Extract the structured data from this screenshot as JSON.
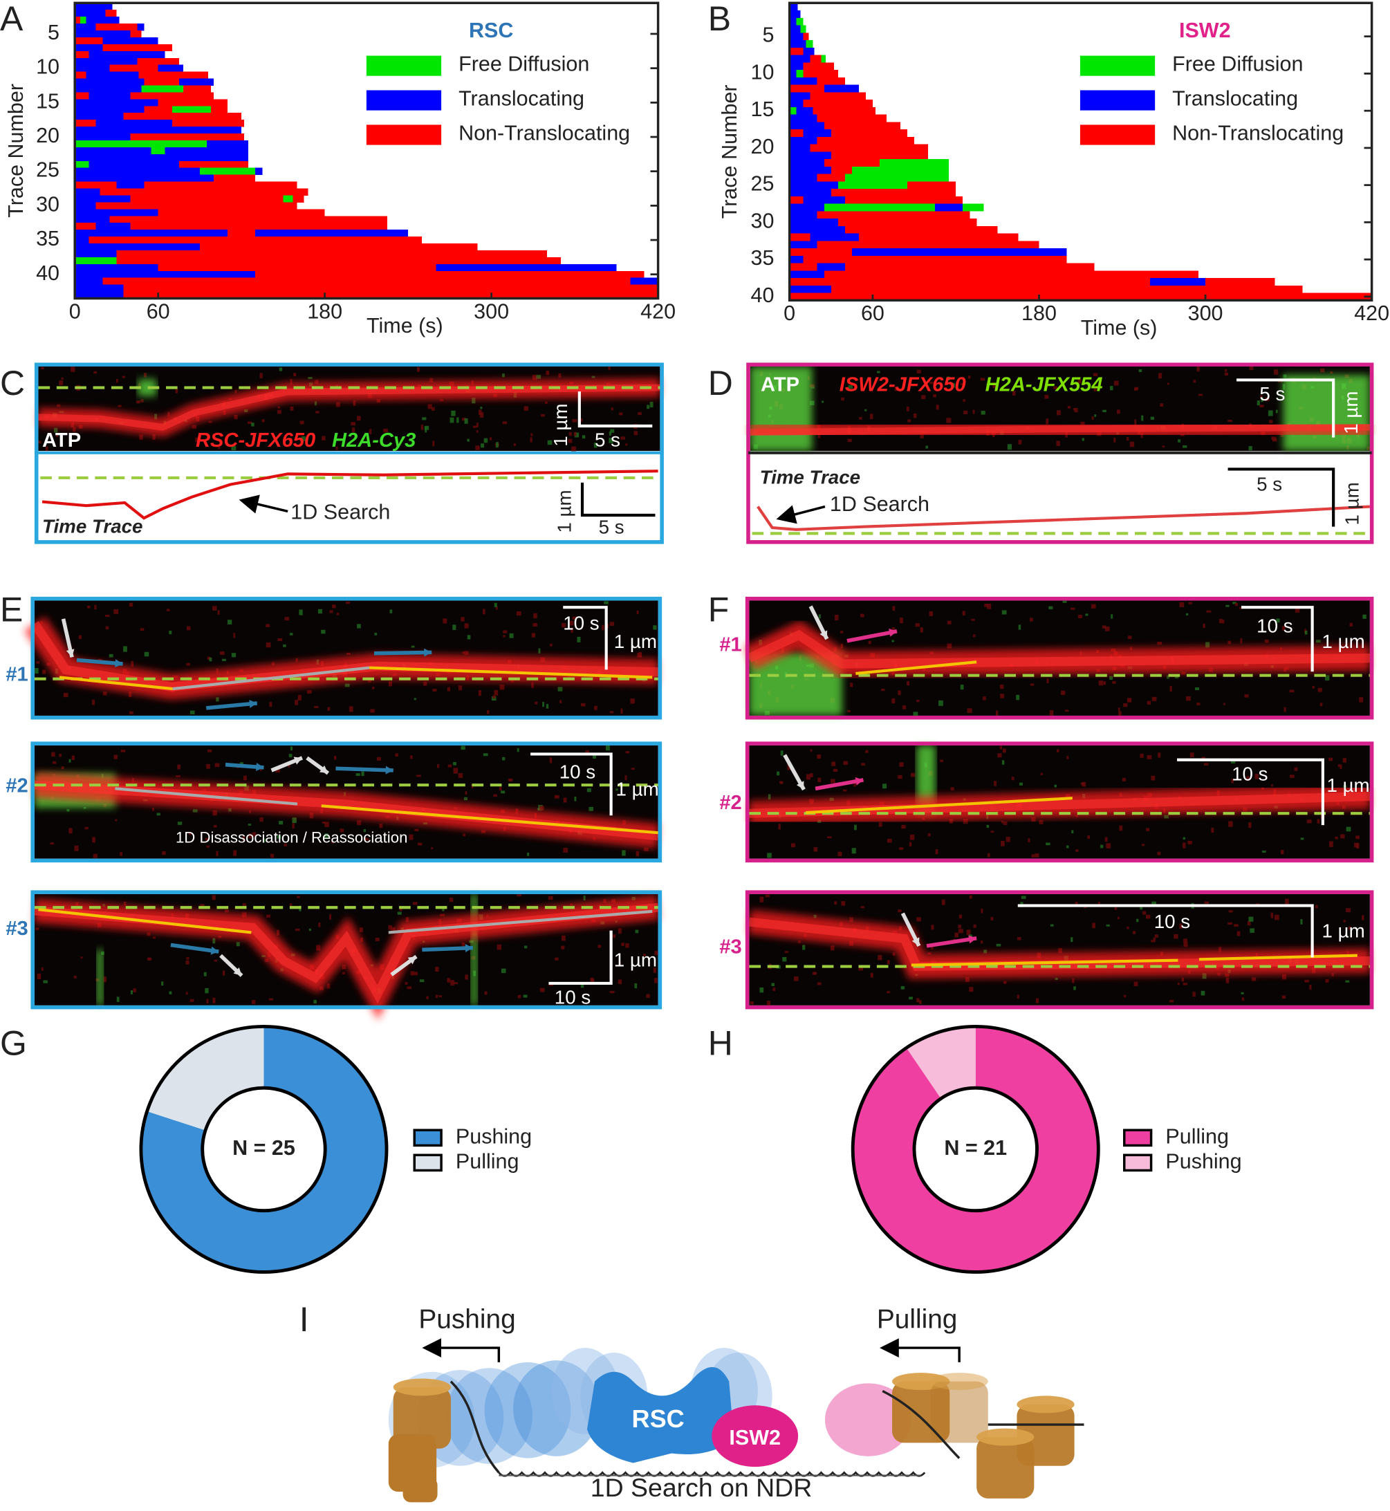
{
  "chart_data": [
    {
      "type": "gantt",
      "title": "RSC",
      "title_color": "#2e75b6",
      "xlabel": "Time (s)",
      "ylabel": "Trace Number",
      "xlim": [
        0,
        420
      ],
      "xticks": [
        0,
        60,
        180,
        300,
        420
      ],
      "ylim": [
        0.5,
        43.5
      ],
      "yticks": [
        5,
        10,
        15,
        20,
        25,
        30,
        35,
        40
      ],
      "legend": "upper right",
      "series": [
        {
          "name": "Free Diffusion",
          "color": "#00e600"
        },
        {
          "name": "Translocating",
          "color": "#0000ff"
        },
        {
          "name": "Non-Translocating",
          "color": "#ff0000"
        }
      ],
      "traces": [
        [
          [
            "Translocating",
            27
          ]
        ],
        [
          [
            "Translocating",
            22
          ],
          [
            "Non-Translocating",
            8
          ]
        ],
        [
          [
            "Non-Translocating",
            4
          ],
          [
            "Free Diffusion",
            4
          ],
          [
            "Translocating",
            24
          ]
        ],
        [
          [
            "Translocating",
            15
          ],
          [
            "Non-Translocating",
            30
          ],
          [
            "Translocating",
            5
          ]
        ],
        [
          [
            "Translocating",
            40
          ],
          [
            "Non-Translocating",
            8
          ]
        ],
        [
          [
            "Non-Translocating",
            20
          ],
          [
            "Translocating",
            40
          ]
        ],
        [
          [
            "Translocating",
            20
          ],
          [
            "Non-Translocating",
            50
          ]
        ],
        [
          [
            "Non-Translocating",
            10
          ],
          [
            "Translocating",
            55
          ]
        ],
        [
          [
            "Translocating",
            45
          ],
          [
            "Non-Translocating",
            30
          ]
        ],
        [
          [
            "Translocating",
            25
          ],
          [
            "Non-Translocating",
            35
          ],
          [
            "Translocating",
            18
          ]
        ],
        [
          [
            "Non-Translocating",
            8
          ],
          [
            "Translocating",
            38
          ],
          [
            "Non-Translocating",
            50
          ]
        ],
        [
          [
            "Translocating",
            50
          ],
          [
            "Non-Translocating",
            25
          ],
          [
            "Translocating",
            25
          ]
        ],
        [
          [
            "Translocating",
            48
          ],
          [
            "Free Diffusion",
            30
          ],
          [
            "Non-Translocating",
            20
          ]
        ],
        [
          [
            "Non-Translocating",
            10
          ],
          [
            "Translocating",
            30
          ],
          [
            "Non-Translocating",
            60
          ]
        ],
        [
          [
            "Translocating",
            60
          ],
          [
            "Non-Translocating",
            50
          ]
        ],
        [
          [
            "Translocating",
            50
          ],
          [
            "Non-Translocating",
            20
          ],
          [
            "Free Diffusion",
            28
          ],
          [
            "Non-Translocating",
            12
          ]
        ],
        [
          [
            "Translocating",
            35
          ],
          [
            "Non-Translocating",
            85
          ]
        ],
        [
          [
            "Non-Translocating",
            15
          ],
          [
            "Translocating",
            55
          ],
          [
            "Non-Translocating",
            52
          ]
        ],
        [
          [
            "Translocating",
            120
          ]
        ],
        [
          [
            "Translocating",
            40
          ],
          [
            "Non-Translocating",
            82
          ]
        ],
        [
          [
            "Free Diffusion",
            95
          ],
          [
            "Translocating",
            30
          ]
        ],
        [
          [
            "Translocating",
            55
          ],
          [
            "Free Diffusion",
            10
          ],
          [
            "Translocating",
            60
          ]
        ],
        [
          [
            "Translocating",
            125
          ]
        ],
        [
          [
            "Free Diffusion",
            10
          ],
          [
            "Translocating",
            65
          ],
          [
            "Non-Translocating",
            50
          ]
        ],
        [
          [
            "Translocating",
            90
          ],
          [
            "Free Diffusion",
            40
          ],
          [
            "Translocating",
            5
          ]
        ],
        [
          [
            "Translocating",
            100
          ],
          [
            "Non-Translocating",
            30
          ]
        ],
        [
          [
            "Non-Translocating",
            30
          ],
          [
            "Translocating",
            20
          ],
          [
            "Non-Translocating",
            110
          ]
        ],
        [
          [
            "Translocating",
            18
          ],
          [
            "Non-Translocating",
            150
          ]
        ],
        [
          [
            "Translocating",
            40
          ],
          [
            "Non-Translocating",
            110
          ],
          [
            "Free Diffusion",
            7
          ],
          [
            "Non-Translocating",
            8
          ]
        ],
        [
          [
            "Translocating",
            15
          ],
          [
            "Non-Translocating",
            145
          ]
        ],
        [
          [
            "Translocating",
            60
          ],
          [
            "Non-Translocating",
            120
          ]
        ],
        [
          [
            "Translocating",
            25
          ],
          [
            "Non-Translocating",
            200
          ]
        ],
        [
          [
            "Non-Translocating",
            15
          ],
          [
            "Translocating",
            25
          ],
          [
            "Non-Translocating",
            185
          ]
        ],
        [
          [
            "Translocating",
            110
          ],
          [
            "Non-Translocating",
            20
          ],
          [
            "Translocating",
            110
          ]
        ],
        [
          [
            "Translocating",
            10
          ],
          [
            "Non-Translocating",
            240
          ]
        ],
        [
          [
            "Translocating",
            90
          ],
          [
            "Non-Translocating",
            200
          ]
        ],
        [
          [
            "Translocating",
            30
          ],
          [
            "Non-Translocating",
            310
          ]
        ],
        [
          [
            "Free Diffusion",
            30
          ],
          [
            "Non-Translocating",
            320
          ]
        ],
        [
          [
            "Translocating",
            60
          ],
          [
            "Non-Translocating",
            200
          ],
          [
            "Translocating",
            130
          ]
        ],
        [
          [
            "Translocating",
            130
          ],
          [
            "Non-Translocating",
            280
          ]
        ],
        [
          [
            "Translocating",
            20
          ],
          [
            "Non-Translocating",
            380
          ],
          [
            "Translocating",
            20
          ]
        ],
        [
          [
            "Translocating",
            35
          ],
          [
            "Non-Translocating",
            385
          ]
        ],
        [
          [
            "Translocating",
            35
          ],
          [
            "Non-Translocating",
            385
          ]
        ]
      ]
    },
    {
      "type": "gantt",
      "title": "ISW2",
      "title_color": "#e0218a",
      "xlabel": "Time (s)",
      "ylabel": "Trace Number",
      "xlim": [
        0,
        420
      ],
      "xticks": [
        0,
        60,
        180,
        300,
        420
      ],
      "ylim": [
        0.5,
        40.5
      ],
      "yticks": [
        5,
        10,
        15,
        20,
        25,
        30,
        35,
        40
      ],
      "legend": "upper right",
      "series": [
        {
          "name": "Free Diffusion",
          "color": "#00e600"
        },
        {
          "name": "Translocating",
          "color": "#0000ff"
        },
        {
          "name": "Non-Translocating",
          "color": "#ff0000"
        }
      ],
      "traces": [
        [
          [
            "Translocating",
            6
          ]
        ],
        [
          [
            "Translocating",
            8
          ]
        ],
        [
          [
            "Translocating",
            5
          ],
          [
            "Free Diffusion",
            5
          ]
        ],
        [
          [
            "Translocating",
            8
          ],
          [
            "Free Diffusion",
            4
          ]
        ],
        [
          [
            "Translocating",
            10
          ],
          [
            "Non-Translocating",
            4
          ]
        ],
        [
          [
            "Translocating",
            12
          ],
          [
            "Free Diffusion",
            5
          ]
        ],
        [
          [
            "Non-Translocating",
            10
          ],
          [
            "Translocating",
            8
          ]
        ],
        [
          [
            "Translocating",
            15
          ],
          [
            "Non-Translocating",
            8
          ],
          [
            "Free Diffusion",
            3
          ]
        ],
        [
          [
            "Translocating",
            10
          ],
          [
            "Non-Translocating",
            22
          ]
        ],
        [
          [
            "Translocating",
            5
          ],
          [
            "Free Diffusion",
            5
          ],
          [
            "Non-Translocating",
            25
          ]
        ],
        [
          [
            "Translocating",
            20
          ],
          [
            "Non-Translocating",
            20
          ]
        ],
        [
          [
            "Non-Translocating",
            25
          ],
          [
            "Translocating",
            25
          ]
        ],
        [
          [
            "Translocating",
            15
          ],
          [
            "Non-Translocating",
            40
          ]
        ],
        [
          [
            "Translocating",
            10
          ],
          [
            "Non-Translocating",
            50
          ]
        ],
        [
          [
            "Free Diffusion",
            5
          ],
          [
            "Translocating",
            12
          ],
          [
            "Non-Translocating",
            45
          ]
        ],
        [
          [
            "Translocating",
            20
          ],
          [
            "Non-Translocating",
            50
          ]
        ],
        [
          [
            "Translocating",
            25
          ],
          [
            "Non-Translocating",
            55
          ]
        ],
        [
          [
            "Non-Translocating",
            10
          ],
          [
            "Translocating",
            20
          ],
          [
            "Non-Translocating",
            55
          ]
        ],
        [
          [
            "Translocating",
            20
          ],
          [
            "Non-Translocating",
            70
          ]
        ],
        [
          [
            "Translocating",
            15
          ],
          [
            "Non-Translocating",
            85
          ]
        ],
        [
          [
            "Translocating",
            30
          ],
          [
            "Non-Translocating",
            70
          ]
        ],
        [
          [
            "Translocating",
            25
          ],
          [
            "Non-Translocating",
            40
          ],
          [
            "Free Diffusion",
            50
          ]
        ],
        [
          [
            "Translocating",
            30
          ],
          [
            "Non-Translocating",
            15
          ],
          [
            "Free Diffusion",
            70
          ]
        ],
        [
          [
            "Translocating",
            20
          ],
          [
            "Non-Translocating",
            20
          ],
          [
            "Free Diffusion",
            75
          ]
        ],
        [
          [
            "Translocating",
            35
          ],
          [
            "Free Diffusion",
            50
          ],
          [
            "Non-Translocating",
            35
          ]
        ],
        [
          [
            "Translocating",
            30
          ],
          [
            "Non-Translocating",
            90
          ]
        ],
        [
          [
            "Non-Translocating",
            10
          ],
          [
            "Translocating",
            30
          ],
          [
            "Non-Translocating",
            85
          ]
        ],
        [
          [
            "Translocating",
            25
          ],
          [
            "Free Diffusion",
            80
          ],
          [
            "Translocating",
            20
          ],
          [
            "Free Diffusion",
            15
          ]
        ],
        [
          [
            "Translocating",
            20
          ],
          [
            "Non-Translocating",
            110
          ]
        ],
        [
          [
            "Translocating",
            35
          ],
          [
            "Non-Translocating",
            100
          ]
        ],
        [
          [
            "Translocating",
            40
          ],
          [
            "Non-Translocating",
            110
          ]
        ],
        [
          [
            "Non-Translocating",
            15
          ],
          [
            "Translocating",
            35
          ],
          [
            "Non-Translocating",
            115
          ]
        ],
        [
          [
            "Translocating",
            20
          ],
          [
            "Non-Translocating",
            160
          ]
        ],
        [
          [
            "Non-Translocating",
            45
          ],
          [
            "Translocating",
            155
          ]
        ],
        [
          [
            "Translocating",
            10
          ],
          [
            "Non-Translocating",
            190
          ]
        ],
        [
          [
            "Non-Translocating",
            20
          ],
          [
            "Translocating",
            20
          ],
          [
            "Non-Translocating",
            180
          ]
        ],
        [
          [
            "Translocating",
            25
          ],
          [
            "Non-Translocating",
            270
          ]
        ],
        [
          [
            "Non-Translocating",
            260
          ],
          [
            "Translocating",
            40
          ],
          [
            "Non-Translocating",
            50
          ]
        ],
        [
          [
            "Translocating",
            30
          ],
          [
            "Non-Translocating",
            340
          ]
        ],
        [
          [
            "Non-Translocating",
            420
          ]
        ]
      ]
    },
    {
      "type": "donut",
      "center_label": "N = 25",
      "categories": [
        "Pushing",
        "Pulling"
      ],
      "values": [
        20,
        5
      ],
      "colors": [
        "#3b8fd6",
        "#dde3ea"
      ]
    },
    {
      "type": "donut",
      "center_label": "N = 21",
      "categories": [
        "Pulling",
        "Pushing"
      ],
      "values": [
        19,
        2
      ],
      "colors": [
        "#ef3fa0",
        "#f6bcd9"
      ]
    }
  ],
  "panel_letters": [
    "A",
    "B",
    "C",
    "D",
    "E",
    "F",
    "G",
    "H",
    "I"
  ],
  "kymographs": {
    "C": {
      "atp": "ATP",
      "protein": "RSC-JFX650",
      "histone": "H2A-Cy3",
      "time_scale": "5 s",
      "length_scale": "1 µm",
      "trace_title": "Time Trace",
      "annotation": "1D Search",
      "trace_time_scale": "5 s",
      "trace_length_scale": "1 µm"
    },
    "D": {
      "atp": "ATP",
      "protein": "ISW2-JFX650",
      "histone": "H2A-JFX554",
      "time_scale": "5 s",
      "length_scale": "1 µm",
      "trace_title": "Time Trace",
      "annotation": "1D Search",
      "trace_time_scale": "5 s",
      "trace_length_scale": "1 µm"
    },
    "E": [
      {
        "label": "#1",
        "time_scale": "10 s",
        "length_scale": "1 µm"
      },
      {
        "label": "#2",
        "time_scale": "10 s",
        "length_scale": "1 µm",
        "annotation": "1D Disassociation / Reassociation"
      },
      {
        "label": "#3",
        "time_scale": "10 s",
        "length_scale": "1 µm"
      }
    ],
    "F": [
      {
        "label": "#1",
        "time_scale": "10 s",
        "length_scale": "1 µm"
      },
      {
        "label": "#2",
        "time_scale": "10 s",
        "length_scale": "1 µm"
      },
      {
        "label": "#3",
        "time_scale": "10 s",
        "length_scale": "1 µm"
      }
    ]
  },
  "schematic": {
    "pushing": "Pushing",
    "pulling": "Pulling",
    "rsc": "RSC",
    "isw2": "ISW2",
    "caption": "1D Search on NDR"
  }
}
